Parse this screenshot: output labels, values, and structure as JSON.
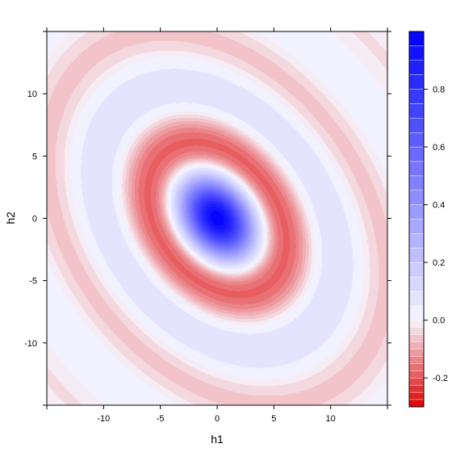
{
  "chart_data": {
    "type": "heatmap",
    "title": "",
    "xlabel": "h1",
    "ylabel": "h2",
    "xlim": [
      -15,
      15
    ],
    "ylim": [
      -15,
      15
    ],
    "x_ticks": [
      -10,
      -5,
      0,
      5,
      10
    ],
    "y_ticks": [
      -10,
      -5,
      0,
      5,
      10
    ],
    "colorbar": {
      "range": [
        -0.3,
        1.0
      ],
      "ticks": [
        -0.2,
        0.0,
        0.2,
        0.4,
        0.6,
        0.8
      ],
      "tick_labels": [
        "-0.2",
        "0.0",
        "0.2",
        "0.4",
        "0.6",
        "0.8"
      ],
      "positive_step": 0.05,
      "negative_step": 0.025,
      "low_color": "#dd0000",
      "mid_color": "#f7f7ff",
      "high_color": "#0000ff"
    },
    "surface": {
      "peak_value": 1.0,
      "peak_at": [
        0,
        0
      ],
      "min_value": -0.3,
      "min_at": [
        [
          -2.7,
          -2.9
        ],
        [
          2.7,
          2.9
        ]
      ],
      "major_axis_direction": "h1 = -h2",
      "pattern": "concentric elliptical rings, alternating positive and negative, decaying outward"
    }
  }
}
